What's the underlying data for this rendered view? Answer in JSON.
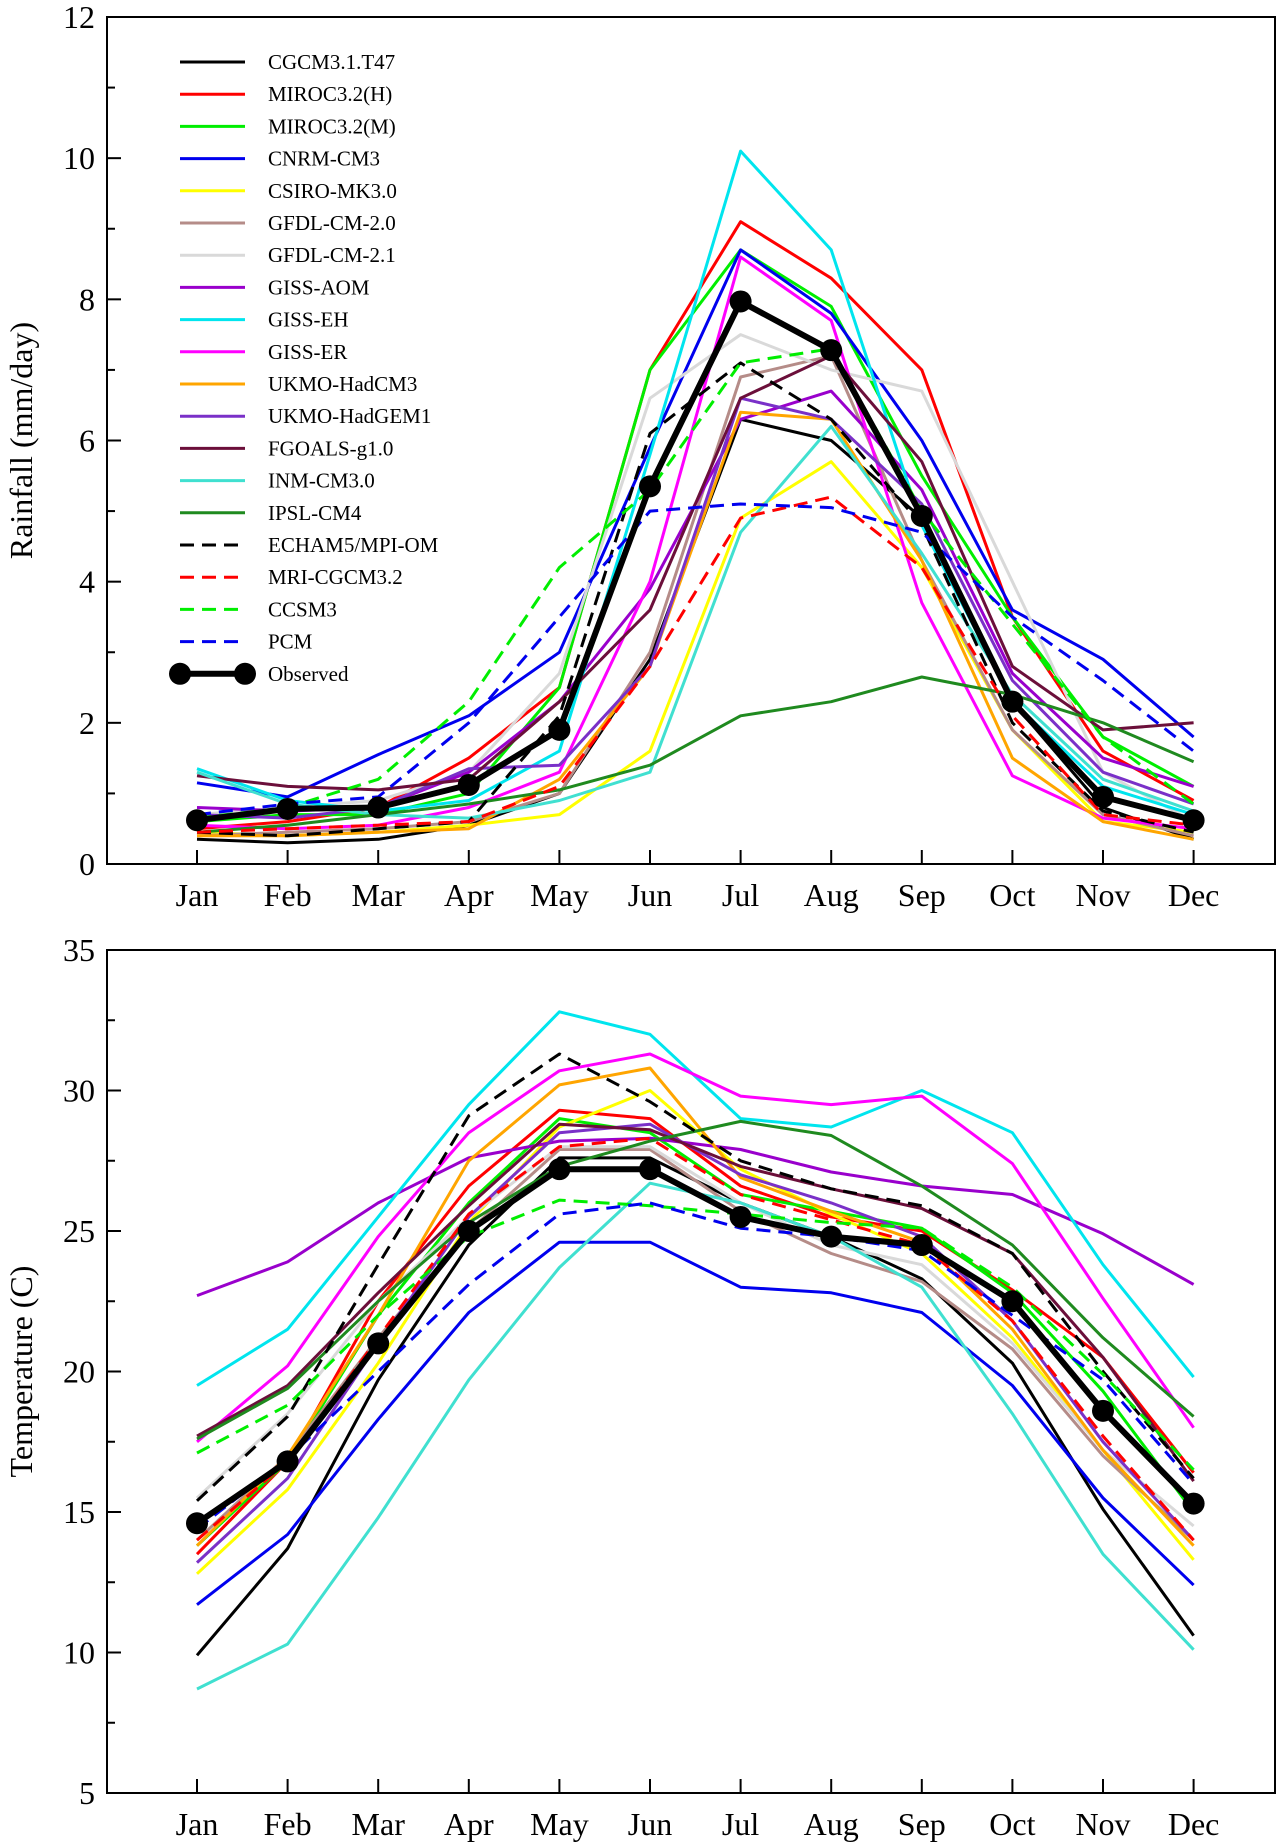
{
  "chart_data": [
    {
      "type": "line",
      "ylabel": "Rainfall (mm/day)",
      "xlabel": "",
      "categories": [
        "Jan",
        "Feb",
        "Mar",
        "Apr",
        "May",
        "Jun",
        "Jul",
        "Aug",
        "Sep",
        "Oct",
        "Nov",
        "Dec"
      ],
      "ylim": [
        0,
        12
      ],
      "yticks": [
        0,
        2,
        4,
        6,
        8,
        10,
        12
      ],
      "ytick_labels": [
        "0",
        "2",
        "4",
        "6",
        "8",
        "10",
        "12"
      ],
      "legend_position": "top-left",
      "series": [
        {
          "name": "CGCM3.1.T47",
          "color": "#000000",
          "dash": false,
          "values": [
            0.35,
            0.3,
            0.35,
            0.55,
            1.0,
            2.9,
            6.3,
            6.0,
            4.9,
            2.3,
            0.8,
            0.35
          ]
        },
        {
          "name": "MIROC3.2(H)",
          "color": "#ff0000",
          "dash": false,
          "values": [
            0.5,
            0.6,
            0.8,
            1.5,
            2.5,
            7.0,
            9.1,
            8.3,
            7.0,
            3.5,
            1.6,
            0.9
          ]
        },
        {
          "name": "MIROC3.2(M)",
          "color": "#00ee00",
          "dash": false,
          "values": [
            0.6,
            0.7,
            0.7,
            1.0,
            2.5,
            7.0,
            8.7,
            7.9,
            5.5,
            3.5,
            1.8,
            1.1
          ]
        },
        {
          "name": "CNRM-CM3",
          "color": "#0000ee",
          "dash": false,
          "values": [
            1.15,
            0.95,
            1.55,
            2.1,
            3.0,
            5.9,
            8.7,
            7.8,
            6.0,
            3.6,
            2.9,
            1.8
          ]
        },
        {
          "name": "CSIRO-MK3.0",
          "color": "#ffff00",
          "dash": false,
          "values": [
            0.45,
            0.4,
            0.45,
            0.55,
            0.7,
            1.6,
            4.9,
            5.7,
            4.2,
            1.9,
            0.6,
            0.45
          ]
        },
        {
          "name": "GFDL-CM-2.0",
          "color": "#b58c88",
          "dash": false,
          "values": [
            0.4,
            0.45,
            0.5,
            0.6,
            1.0,
            3.0,
            6.9,
            7.2,
            4.3,
            1.9,
            0.7,
            0.4
          ]
        },
        {
          "name": "GFDL-CM-2.1",
          "color": "#d9d9d9",
          "dash": false,
          "values": [
            0.7,
            0.8,
            0.9,
            1.3,
            2.7,
            6.6,
            7.5,
            7.0,
            6.7,
            4.0,
            1.3,
            0.6
          ]
        },
        {
          "name": "GISS-AOM",
          "color": "#9900cc",
          "dash": false,
          "values": [
            0.8,
            0.75,
            0.8,
            1.3,
            2.3,
            3.9,
            6.3,
            6.7,
            5.3,
            2.7,
            1.5,
            1.1
          ]
        },
        {
          "name": "GISS-EH",
          "color": "#00e5ee",
          "dash": false,
          "values": [
            1.35,
            0.9,
            0.75,
            0.9,
            1.6,
            5.8,
            10.1,
            8.7,
            4.8,
            2.3,
            1.1,
            0.7
          ]
        },
        {
          "name": "GISS-ER",
          "color": "#ff00ff",
          "dash": false,
          "values": [
            0.55,
            0.5,
            0.55,
            0.8,
            1.3,
            4.0,
            8.6,
            7.7,
            3.7,
            1.25,
            0.65,
            0.5
          ]
        },
        {
          "name": "UKMO-HadCM3",
          "color": "#ffa500",
          "dash": false,
          "values": [
            0.4,
            0.4,
            0.45,
            0.5,
            1.2,
            2.8,
            6.4,
            6.3,
            4.3,
            1.5,
            0.6,
            0.35
          ]
        },
        {
          "name": "UKMO-HadGEM1",
          "color": "#7a30c8",
          "dash": false,
          "values": [
            0.7,
            0.65,
            0.8,
            1.35,
            1.4,
            2.8,
            6.6,
            6.3,
            5.1,
            2.6,
            1.3,
            0.85
          ]
        },
        {
          "name": "FGOALS-g1.0",
          "color": "#6b0f3a",
          "dash": false,
          "values": [
            1.25,
            1.1,
            1.05,
            1.2,
            2.3,
            3.6,
            6.6,
            7.2,
            5.7,
            2.8,
            1.9,
            2.0
          ]
        },
        {
          "name": "INM-CM3.0",
          "color": "#40e0d0",
          "dash": false,
          "values": [
            1.3,
            0.85,
            0.7,
            0.65,
            0.9,
            1.3,
            4.7,
            6.2,
            4.4,
            2.4,
            1.2,
            0.75
          ]
        },
        {
          "name": "IPSL-CM4",
          "color": "#1f8a1f",
          "dash": false,
          "values": [
            0.45,
            0.55,
            0.7,
            0.85,
            1.05,
            1.4,
            2.1,
            2.3,
            2.65,
            2.4,
            2.0,
            1.45
          ]
        },
        {
          "name": "ECHAM5/MPI-OM",
          "color": "#000000",
          "dash": true,
          "values": [
            0.45,
            0.4,
            0.5,
            0.6,
            2.1,
            6.1,
            7.1,
            6.3,
            4.8,
            2.0,
            0.75,
            0.45
          ]
        },
        {
          "name": "MRI-CGCM3.2",
          "color": "#ff0000",
          "dash": true,
          "values": [
            0.45,
            0.5,
            0.55,
            0.6,
            1.1,
            2.8,
            4.9,
            5.2,
            4.2,
            2.1,
            0.7,
            0.55
          ]
        },
        {
          "name": "CCSM3",
          "color": "#00ee00",
          "dash": true,
          "values": [
            0.65,
            0.8,
            1.2,
            2.3,
            4.2,
            5.3,
            7.1,
            7.3,
            5.0,
            3.4,
            1.8,
            0.85
          ]
        },
        {
          "name": "PCM",
          "color": "#0000ee",
          "dash": true,
          "values": [
            0.7,
            0.85,
            0.95,
            2.0,
            3.5,
            5.0,
            5.1,
            5.05,
            4.7,
            3.5,
            2.6,
            1.6
          ]
        },
        {
          "name": "Observed",
          "color": "#000000",
          "dash": false,
          "observed": true,
          "values": [
            0.62,
            0.78,
            0.8,
            1.12,
            1.9,
            5.35,
            7.97,
            7.28,
            4.93,
            2.3,
            0.95,
            0.62
          ]
        }
      ]
    },
    {
      "type": "line",
      "ylabel": "Temperature (C)",
      "xlabel": "",
      "categories": [
        "Jan",
        "Feb",
        "Mar",
        "Apr",
        "May",
        "Jun",
        "Jul",
        "Aug",
        "Sep",
        "Oct",
        "Nov",
        "Dec"
      ],
      "ylim": [
        5,
        35
      ],
      "yticks": [
        5,
        10,
        15,
        20,
        25,
        30,
        35
      ],
      "ytick_labels": [
        "5",
        "10",
        "15",
        "20",
        "25",
        "30",
        "35"
      ],
      "series": [
        {
          "name": "CGCM3.1.T47",
          "color": "#000000",
          "dash": false,
          "values": [
            9.9,
            13.7,
            19.7,
            24.5,
            27.6,
            27.6,
            26.0,
            24.8,
            23.3,
            20.3,
            15.1,
            10.6
          ]
        },
        {
          "name": "MIROC3.2(H)",
          "color": "#ff0000",
          "dash": false,
          "values": [
            13.5,
            16.8,
            22.5,
            26.6,
            29.3,
            29.0,
            26.6,
            25.5,
            25.0,
            22.9,
            20.5,
            16.4
          ]
        },
        {
          "name": "MIROC3.2(M)",
          "color": "#00ee00",
          "dash": false,
          "values": [
            13.8,
            16.8,
            22.0,
            26.0,
            29.0,
            28.5,
            26.3,
            25.7,
            25.1,
            22.8,
            19.3,
            15.0
          ]
        },
        {
          "name": "CNRM-CM3",
          "color": "#0000ee",
          "dash": false,
          "values": [
            11.7,
            14.2,
            18.3,
            22.1,
            24.6,
            24.6,
            23.0,
            22.8,
            22.1,
            19.5,
            15.5,
            12.4
          ]
        },
        {
          "name": "CSIRO-MK3.0",
          "color": "#ffff00",
          "dash": false,
          "values": [
            12.8,
            15.8,
            20.3,
            25.3,
            28.7,
            30.0,
            27.2,
            25.6,
            24.2,
            21.2,
            17.2,
            13.3
          ]
        },
        {
          "name": "GFDL-CM-2.0",
          "color": "#b58c88",
          "dash": false,
          "values": [
            14.0,
            17.0,
            21.2,
            25.0,
            27.9,
            27.9,
            25.7,
            24.2,
            23.2,
            20.8,
            17.0,
            14.0
          ]
        },
        {
          "name": "GFDL-CM-2.1",
          "color": "#d9d9d9",
          "dash": false,
          "values": [
            15.5,
            18.5,
            22.5,
            25.5,
            28.0,
            28.0,
            26.0,
            24.5,
            23.8,
            21.0,
            17.2,
            14.5
          ]
        },
        {
          "name": "GISS-AOM",
          "color": "#9900cc",
          "dash": false,
          "values": [
            22.7,
            23.9,
            26.0,
            27.6,
            28.2,
            28.3,
            27.9,
            27.1,
            26.6,
            26.3,
            24.9,
            23.1
          ]
        },
        {
          "name": "GISS-EH",
          "color": "#00e5ee",
          "dash": false,
          "values": [
            19.5,
            21.5,
            25.5,
            29.5,
            32.8,
            32.0,
            29.0,
            28.7,
            30.0,
            28.5,
            23.8,
            19.8
          ]
        },
        {
          "name": "GISS-ER",
          "color": "#ff00ff",
          "dash": false,
          "values": [
            17.5,
            20.2,
            24.8,
            28.5,
            30.7,
            31.3,
            29.8,
            29.5,
            29.8,
            27.4,
            22.6,
            18.0
          ]
        },
        {
          "name": "UKMO-HadCM3",
          "color": "#ffa500",
          "dash": false,
          "values": [
            13.8,
            17.0,
            22.0,
            27.5,
            30.2,
            30.8,
            26.9,
            25.7,
            24.6,
            21.5,
            17.2,
            13.8
          ]
        },
        {
          "name": "UKMO-HadGEM1",
          "color": "#7a30c8",
          "dash": false,
          "values": [
            13.2,
            16.2,
            21.0,
            25.5,
            28.5,
            28.8,
            27.0,
            26.0,
            24.8,
            21.8,
            17.5,
            14.0
          ]
        },
        {
          "name": "FGOALS-g1.0",
          "color": "#6b0f3a",
          "dash": false,
          "values": [
            17.7,
            19.5,
            22.8,
            25.9,
            28.8,
            28.6,
            27.3,
            26.5,
            25.8,
            24.2,
            20.5,
            16.1
          ]
        },
        {
          "name": "INM-CM3.0",
          "color": "#40e0d0",
          "dash": false,
          "values": [
            8.7,
            10.3,
            14.8,
            19.7,
            23.7,
            26.7,
            26.0,
            24.8,
            23.0,
            18.5,
            13.5,
            10.1
          ]
        },
        {
          "name": "IPSL-CM4",
          "color": "#1f8a1f",
          "dash": false,
          "values": [
            17.6,
            19.4,
            22.5,
            25.3,
            27.3,
            28.2,
            28.9,
            28.4,
            26.6,
            24.5,
            21.2,
            18.4
          ]
        },
        {
          "name": "ECHAM5/MPI-OM",
          "color": "#000000",
          "dash": true,
          "values": [
            15.4,
            18.4,
            23.8,
            29.1,
            31.3,
            29.6,
            27.5,
            26.5,
            25.9,
            24.2,
            20.0,
            16.2
          ]
        },
        {
          "name": "MRI-CGCM3.2",
          "color": "#ff0000",
          "dash": true,
          "values": [
            14.0,
            16.8,
            21.2,
            25.6,
            28.0,
            28.3,
            26.3,
            25.4,
            24.5,
            21.8,
            17.7,
            14.0
          ]
        },
        {
          "name": "CCSM3",
          "color": "#00ee00",
          "dash": true,
          "values": [
            17.1,
            18.8,
            22.0,
            24.8,
            26.1,
            25.9,
            25.6,
            25.3,
            25.1,
            23.0,
            19.9,
            16.5
          ]
        },
        {
          "name": "PCM",
          "color": "#0000ee",
          "dash": true,
          "values": [
            14.4,
            16.9,
            20.0,
            23.1,
            25.6,
            26.0,
            25.1,
            24.8,
            24.3,
            22.0,
            19.7,
            16.0
          ]
        },
        {
          "name": "Observed",
          "color": "#000000",
          "dash": false,
          "observed": true,
          "values": [
            14.6,
            16.8,
            21.0,
            25.0,
            27.2,
            27.2,
            25.5,
            24.8,
            24.5,
            22.5,
            18.6,
            15.3
          ]
        }
      ]
    }
  ]
}
